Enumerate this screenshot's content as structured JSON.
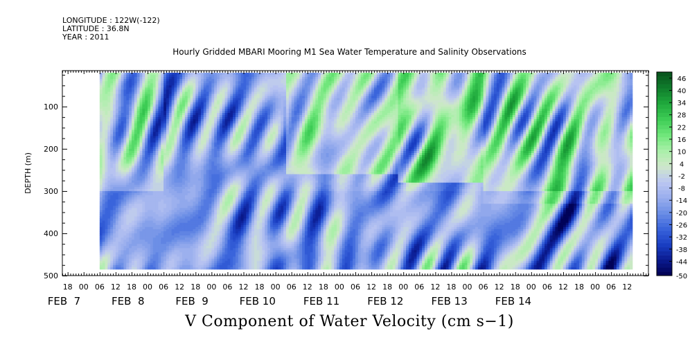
{
  "header": {
    "longitude": "LONGITUDE : 122W(-122)",
    "latitude": "LATITUDE : 36.8N",
    "year": "YEAR : 2011"
  },
  "chart_data": {
    "type": "heatmap",
    "title": "Hourly Gridded MBARI Mooring M1 Sea Water Temperature and Salinity Observations",
    "caption": "V Component of Water Velocity (cm s−1)",
    "ylabel": "DEPTH (m)",
    "y_inverted": true,
    "ylim": [
      500,
      15
    ],
    "yticks": [
      100,
      200,
      300,
      400,
      500
    ],
    "y_data_range": [
      20,
      485
    ],
    "x_data_range_hours": [
      6,
      206
    ],
    "xlim_hours": [
      -8,
      212
    ],
    "hour_tick_labels": [
      "18",
      "00",
      "06",
      "12",
      "18",
      "00",
      "06",
      "12",
      "18",
      "00",
      "06",
      "12",
      "18",
      "00",
      "06",
      "12",
      "18",
      "00",
      "06",
      "12",
      "18",
      "00",
      "06",
      "12",
      "18",
      "00",
      "06",
      "12",
      "18",
      "00",
      "06",
      "12",
      "18",
      "00",
      "06",
      "12"
    ],
    "date_labels": [
      {
        "label": "FEB  7",
        "hour": 0
      },
      {
        "label": "FEB  8",
        "hour": 24
      },
      {
        "label": "FEB  9",
        "hour": 48
      },
      {
        "label": "FEB 10",
        "hour": 72
      },
      {
        "label": "FEB 11",
        "hour": 96
      },
      {
        "label": "FEB 12",
        "hour": 120
      },
      {
        "label": "FEB 13",
        "hour": 144
      },
      {
        "label": "FEB 14",
        "hour": 168
      }
    ],
    "colorbar": {
      "min": -50,
      "max": 50,
      "step": 2,
      "tick_labels": [
        46,
        40,
        34,
        28,
        22,
        16,
        10,
        4,
        -2,
        -8,
        -14,
        -20,
        -26,
        -32,
        -38,
        -44,
        -50
      ],
      "palette": [
        "#000050",
        "#0a1a8f",
        "#1a3fc4",
        "#3a64db",
        "#6b8ee6",
        "#9aaeee",
        "#bcc7f2",
        "#cfe8c9",
        "#a8f0a8",
        "#6ee67a",
        "#3dcc55",
        "#1fa83c",
        "#0f7d2b",
        "#08501c"
      ]
    },
    "field_description_regions": [
      {
        "hours": [
          6,
          30
        ],
        "depth": [
          20,
          300
        ],
        "mean": 0
      },
      {
        "hours": [
          30,
          76
        ],
        "depth": [
          20,
          485
        ],
        "mean": -15
      },
      {
        "hours": [
          76,
          118
        ],
        "depth": [
          20,
          260
        ],
        "mean": 8
      },
      {
        "hours": [
          118,
          150
        ],
        "depth": [
          20,
          280
        ],
        "mean": 18
      },
      {
        "hours": [
          150,
          206
        ],
        "depth": [
          20,
          330
        ],
        "mean": 10
      },
      {
        "hours": [
          6,
          206
        ],
        "depth": [
          300,
          485
        ],
        "mean": -15
      }
    ]
  }
}
